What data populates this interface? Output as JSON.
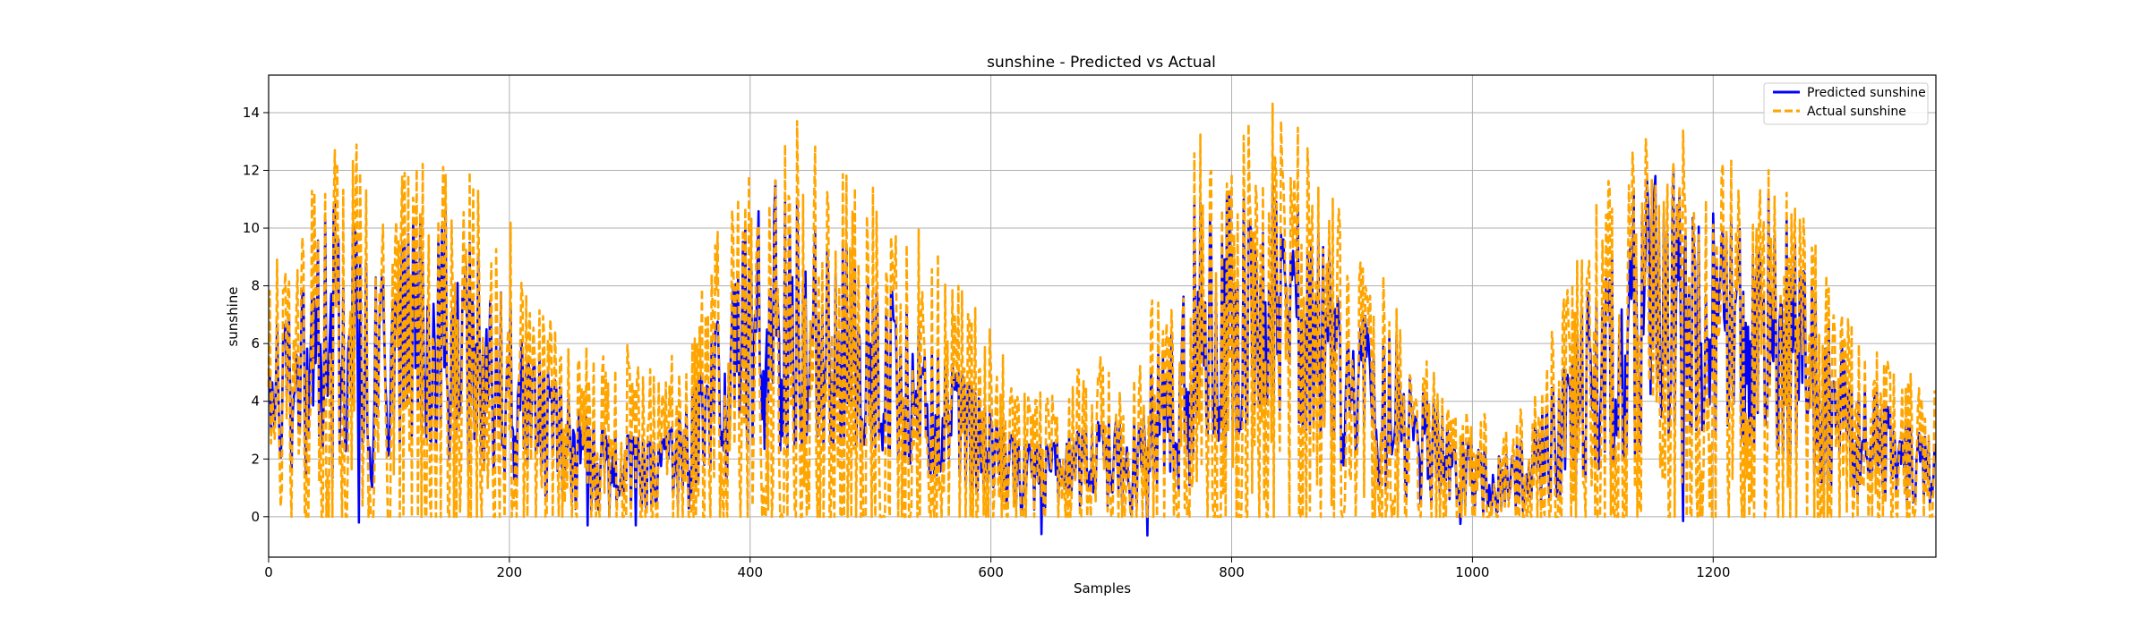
{
  "chart_data": {
    "type": "line",
    "title": "sunshine - Predicted vs Actual",
    "xlabel": "Samples",
    "ylabel": "sunshine",
    "xlim": [
      0,
      1385
    ],
    "ylim": [
      -1.4,
      15.3
    ],
    "xticks": [
      0,
      200,
      400,
      600,
      800,
      1000,
      1200
    ],
    "yticks": [
      0,
      2,
      4,
      6,
      8,
      10,
      12,
      14
    ],
    "grid": true,
    "legend_position": "top-right",
    "n_samples": 1385,
    "series": [
      {
        "name": "Predicted sunshine",
        "color": "#0000ff",
        "style": "solid",
        "envelope_x": [
          0,
          25,
          50,
          75,
          100,
          125,
          150,
          175,
          200,
          225,
          250,
          275,
          300,
          325,
          350,
          375,
          400,
          425,
          450,
          475,
          500,
          525,
          550,
          575,
          600,
          625,
          650,
          675,
          700,
          725,
          750,
          775,
          800,
          825,
          850,
          875,
          900,
          925,
          950,
          975,
          1000,
          1025,
          1050,
          1075,
          1100,
          1125,
          1150,
          1175,
          1200,
          1225,
          1250,
          1275,
          1300,
          1325,
          1350,
          1385
        ],
        "envelope_low": [
          1.5,
          1.5,
          1.5,
          0.0,
          2.2,
          3.0,
          2.0,
          1.5,
          1.2,
          0.8,
          0.3,
          0.0,
          0.0,
          0.0,
          0.3,
          1.0,
          2.0,
          2.3,
          2.5,
          2.5,
          2.5,
          2.0,
          1.5,
          1.2,
          0.5,
          0.2,
          0.0,
          0.0,
          0.0,
          0.0,
          0.5,
          1.5,
          2.5,
          4.0,
          3.5,
          2.5,
          1.5,
          1.0,
          0.5,
          0.3,
          0.0,
          0.0,
          0.3,
          0.8,
          1.5,
          2.0,
          2.5,
          3.0,
          3.0,
          2.5,
          2.5,
          1.5,
          1.0,
          0.5,
          0.3,
          0.5
        ],
        "envelope_high": [
          6.5,
          7.0,
          12.5,
          9.5,
          8.0,
          11.5,
          10.5,
          9.0,
          7.5,
          5.5,
          4.0,
          3.0,
          2.8,
          2.5,
          4.0,
          7.0,
          11.5,
          12.3,
          10.0,
          9.5,
          8.5,
          7.5,
          6.0,
          5.0,
          3.5,
          2.5,
          2.5,
          3.0,
          3.5,
          4.5,
          6.5,
          12.5,
          11.0,
          11.0,
          12.5,
          9.5,
          8.5,
          7.0,
          5.5,
          3.5,
          2.5,
          2.5,
          3.5,
          5.0,
          8.5,
          11.0,
          14.0,
          11.5,
          12.3,
          10.5,
          11.8,
          8.5,
          6.5,
          5.0,
          3.5,
          2.5
        ],
        "envelope_dips": [
          [
            75,
            -0.2
          ],
          [
            265,
            -0.3
          ],
          [
            305,
            -0.3
          ],
          [
            642,
            -0.6
          ],
          [
            730,
            -0.65
          ],
          [
            990,
            -0.25
          ],
          [
            1175,
            -0.15
          ]
        ]
      },
      {
        "name": "Actual sunshine",
        "color": "#ffa500",
        "style": "dashed",
        "envelope_x": [
          0,
          25,
          50,
          75,
          100,
          125,
          150,
          175,
          200,
          225,
          250,
          275,
          300,
          325,
          350,
          375,
          400,
          425,
          450,
          475,
          500,
          525,
          550,
          575,
          600,
          625,
          650,
          675,
          700,
          725,
          750,
          775,
          800,
          825,
          850,
          875,
          900,
          925,
          950,
          975,
          1000,
          1025,
          1050,
          1075,
          1100,
          1125,
          1150,
          1175,
          1200,
          1225,
          1250,
          1275,
          1300,
          1325,
          1350,
          1385
        ],
        "envelope_low": [
          0,
          0,
          0,
          0,
          0,
          0,
          0,
          0,
          0,
          0,
          0,
          0,
          0,
          0,
          0,
          0,
          0,
          0,
          0,
          0,
          0,
          0,
          0,
          0,
          0,
          0,
          0,
          0,
          0,
          0,
          0,
          0,
          0,
          0,
          0,
          0,
          0,
          0,
          0,
          0,
          0,
          0,
          0,
          0,
          0,
          0,
          0,
          0,
          0,
          0,
          0,
          0,
          0,
          0,
          0,
          0
        ],
        "envelope_high": [
          9.6,
          9.5,
          13.6,
          13.3,
          10.2,
          14.4,
          13.1,
          11.8,
          10.3,
          7.5,
          6.0,
          5.8,
          6.2,
          5.0,
          6.5,
          10.5,
          12.2,
          14.3,
          13.5,
          12.5,
          11.5,
          11.0,
          9.5,
          8.0,
          6.5,
          4.5,
          4.5,
          5.5,
          5.8,
          6.8,
          9.0,
          13.8,
          12.8,
          14.5,
          14.0,
          11.8,
          10.0,
          8.5,
          6.5,
          4.5,
          3.8,
          3.5,
          4.5,
          7.5,
          11.0,
          12.5,
          13.8,
          13.5,
          13.2,
          12.0,
          12.2,
          11.0,
          8.5,
          6.0,
          5.5,
          4.5
        ]
      }
    ]
  }
}
